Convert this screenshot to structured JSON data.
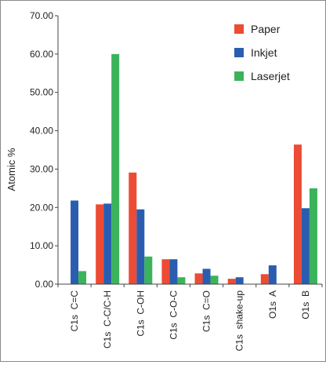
{
  "chart_data": {
    "type": "bar",
    "title": "",
    "xlabel": "",
    "ylabel": "Atomic %",
    "ylim": [
      0,
      70
    ],
    "yticks": [
      "0.00",
      "10.00",
      "20.00",
      "30.00",
      "40.00",
      "50.00",
      "60.00",
      "70.00"
    ],
    "grid": false,
    "legend_position": "top-right",
    "categories": [
      "C1s  C=C",
      "C1s  C-C/C-H",
      "C1s  C-OH",
      "C1s  C-O-C",
      "C1s  C=O",
      "C1s  shake-up",
      "O1s  A",
      "O1s  B"
    ],
    "series": [
      {
        "name": "Paper",
        "color": "#ec4b34",
        "values": [
          0,
          20.8,
          29.1,
          6.5,
          2.8,
          1.4,
          2.6,
          36.4
        ]
      },
      {
        "name": "Inkjet",
        "color": "#2a5db0",
        "values": [
          21.8,
          21.0,
          19.5,
          6.5,
          4.0,
          1.8,
          4.9,
          19.8
        ]
      },
      {
        "name": "Laserjet",
        "color": "#3bb35b",
        "values": [
          3.4,
          60.0,
          7.2,
          1.8,
          2.2,
          0,
          0,
          25.0
        ]
      }
    ]
  }
}
